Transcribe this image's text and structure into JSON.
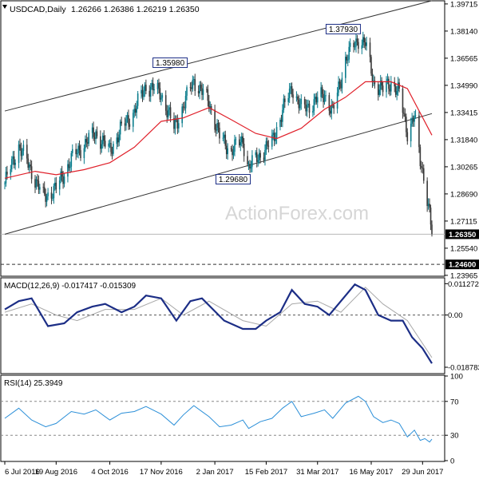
{
  "chart_data": [
    {
      "type": "candlestick",
      "title": "USDCAD,Daily",
      "ohlc_header": "1.26266 1.26386 1.26219 1.26350",
      "watermark": "ActionForex.com",
      "ylim": [
        1.2396,
        1.3985
      ],
      "y_ticks": [
        "1.39715",
        "1.38140",
        "1.36565",
        "1.34990",
        "1.33415",
        "1.31840",
        "1.30265",
        "1.28690",
        "1.27115",
        "1.25540",
        "1.23965"
      ],
      "x_ticks": [
        "6 Jul 2016",
        "19 Aug 2016",
        "4 Oct 2016",
        "17 Nov 2016",
        "2 Jan 2017",
        "15 Feb 2017",
        "31 Mar 2017",
        "16 May 2017",
        "29 Jun 2017"
      ],
      "current_price_label": "1.26350",
      "support_label": "1.24600",
      "annotations": [
        {
          "label": "1.35980",
          "value": 1.3598
        },
        {
          "label": "1.37930",
          "value": 1.3793
        },
        {
          "label": "1.29680",
          "value": 1.2968
        }
      ],
      "channel": {
        "upper": [
          {
            "date": "2016-07-06",
            "value": 1.335
          },
          {
            "date": "2017-07-07",
            "value": 1.399
          }
        ],
        "lower": [
          {
            "date": "2016-07-06",
            "value": 1.2635
          },
          {
            "date": "2017-07-07",
            "value": 1.3335
          }
        ]
      },
      "moving_average_color": "#e0202a",
      "bull_color": "#0a7c8c",
      "bear_color": "#3a3a3a",
      "close_path": [
        {
          "date": "2016-07-06",
          "value": 1.293
        },
        {
          "date": "2016-07-18",
          "value": 1.315
        },
        {
          "date": "2016-07-29",
          "value": 1.3
        },
        {
          "date": "2016-08-08",
          "value": 1.285
        },
        {
          "date": "2016-08-19",
          "value": 1.29
        },
        {
          "date": "2016-09-01",
          "value": 1.307
        },
        {
          "date": "2016-09-12",
          "value": 1.316
        },
        {
          "date": "2016-09-22",
          "value": 1.322
        },
        {
          "date": "2016-10-04",
          "value": 1.312
        },
        {
          "date": "2016-10-14",
          "value": 1.325
        },
        {
          "date": "2016-10-25",
          "value": 1.335
        },
        {
          "date": "2016-11-04",
          "value": 1.35
        },
        {
          "date": "2016-11-17",
          "value": 1.345
        },
        {
          "date": "2016-11-28",
          "value": 1.325
        },
        {
          "date": "2016-12-06",
          "value": 1.338
        },
        {
          "date": "2016-12-15",
          "value": 1.353
        },
        {
          "date": "2016-12-28",
          "value": 1.34
        },
        {
          "date": "2017-01-06",
          "value": 1.32
        },
        {
          "date": "2017-01-16",
          "value": 1.312
        },
        {
          "date": "2017-01-26",
          "value": 1.318
        },
        {
          "date": "2017-01-31",
          "value": 1.302
        },
        {
          "date": "2017-02-10",
          "value": 1.31
        },
        {
          "date": "2017-02-20",
          "value": 1.317
        },
        {
          "date": "2017-03-01",
          "value": 1.335
        },
        {
          "date": "2017-03-09",
          "value": 1.349
        },
        {
          "date": "2017-03-17",
          "value": 1.336
        },
        {
          "date": "2017-03-28",
          "value": 1.34
        },
        {
          "date": "2017-04-06",
          "value": 1.345
        },
        {
          "date": "2017-04-13",
          "value": 1.334
        },
        {
          "date": "2017-04-24",
          "value": 1.365
        },
        {
          "date": "2017-05-05",
          "value": 1.377
        },
        {
          "date": "2017-05-11",
          "value": 1.374
        },
        {
          "date": "2017-05-18",
          "value": 1.352
        },
        {
          "date": "2017-05-26",
          "value": 1.347
        },
        {
          "date": "2017-06-02",
          "value": 1.352
        },
        {
          "date": "2017-06-09",
          "value": 1.345
        },
        {
          "date": "2017-06-16",
          "value": 1.323
        },
        {
          "date": "2017-06-22",
          "value": 1.332
        },
        {
          "date": "2017-06-27",
          "value": 1.306
        },
        {
          "date": "2017-07-01",
          "value": 1.295
        },
        {
          "date": "2017-07-05",
          "value": 1.275
        },
        {
          "date": "2017-07-07",
          "value": 1.2635
        }
      ],
      "moving_average": [
        {
          "date": "2016-07-06",
          "value": 1.296
        },
        {
          "date": "2016-08-01",
          "value": 1.3
        },
        {
          "date": "2016-08-19",
          "value": 1.298
        },
        {
          "date": "2016-09-12",
          "value": 1.301
        },
        {
          "date": "2016-10-04",
          "value": 1.305
        },
        {
          "date": "2016-10-25",
          "value": 1.314
        },
        {
          "date": "2016-11-17",
          "value": 1.329
        },
        {
          "date": "2016-12-06",
          "value": 1.331
        },
        {
          "date": "2016-12-28",
          "value": 1.337
        },
        {
          "date": "2017-01-16",
          "value": 1.33
        },
        {
          "date": "2017-02-06",
          "value": 1.322
        },
        {
          "date": "2017-02-24",
          "value": 1.319
        },
        {
          "date": "2017-03-17",
          "value": 1.325
        },
        {
          "date": "2017-04-06",
          "value": 1.336
        },
        {
          "date": "2017-04-24",
          "value": 1.343
        },
        {
          "date": "2017-05-11",
          "value": 1.352
        },
        {
          "date": "2017-06-02",
          "value": 1.352
        },
        {
          "date": "2017-06-16",
          "value": 1.348
        },
        {
          "date": "2017-07-07",
          "value": 1.321
        }
      ]
    },
    {
      "type": "line",
      "title": "MACD(12,26,9) -0.017417 -0.015309",
      "ylim": [
        -0.0205,
        0.0128
      ],
      "y_ticks": [
        "0.011272",
        "0.00",
        "-0.018783"
      ],
      "series": [
        {
          "name": "MACD",
          "color": "#1c2e86",
          "values": [
            {
              "date": "2016-07-06",
              "value": 0.002
            },
            {
              "date": "2016-07-18",
              "value": 0.005
            },
            {
              "date": "2016-07-29",
              "value": 0.006
            },
            {
              "date": "2016-08-12",
              "value": -0.004
            },
            {
              "date": "2016-08-26",
              "value": -0.003
            },
            {
              "date": "2016-09-06",
              "value": 0.001
            },
            {
              "date": "2016-09-19",
              "value": 0.003
            },
            {
              "date": "2016-09-30",
              "value": 0.004
            },
            {
              "date": "2016-10-14",
              "value": 0.001
            },
            {
              "date": "2016-10-25",
              "value": 0.003
            },
            {
              "date": "2016-11-04",
              "value": 0.007
            },
            {
              "date": "2016-11-17",
              "value": 0.006
            },
            {
              "date": "2016-11-30",
              "value": -0.002
            },
            {
              "date": "2016-12-12",
              "value": 0.005
            },
            {
              "date": "2016-12-22",
              "value": 0.006
            },
            {
              "date": "2017-01-10",
              "value": -0.002
            },
            {
              "date": "2017-01-26",
              "value": -0.005
            },
            {
              "date": "2017-02-06",
              "value": -0.005
            },
            {
              "date": "2017-02-15",
              "value": -0.002
            },
            {
              "date": "2017-02-27",
              "value": 0.001
            },
            {
              "date": "2017-03-09",
              "value": 0.009
            },
            {
              "date": "2017-03-20",
              "value": 0.004
            },
            {
              "date": "2017-03-31",
              "value": 0.003
            },
            {
              "date": "2017-04-10",
              "value": 0.0
            },
            {
              "date": "2017-04-20",
              "value": 0.005
            },
            {
              "date": "2017-05-02",
              "value": 0.011
            },
            {
              "date": "2017-05-11",
              "value": 0.009
            },
            {
              "date": "2017-05-22",
              "value": 0.0
            },
            {
              "date": "2017-06-02",
              "value": -0.002
            },
            {
              "date": "2017-06-12",
              "value": -0.002
            },
            {
              "date": "2017-06-20",
              "value": -0.008
            },
            {
              "date": "2017-06-29",
              "value": -0.012
            },
            {
              "date": "2017-07-07",
              "value": -0.0174
            }
          ]
        },
        {
          "name": "Signal",
          "color": "#a8a8a8",
          "values": [
            {
              "date": "2016-07-06",
              "value": 0.001
            },
            {
              "date": "2016-07-29",
              "value": 0.004
            },
            {
              "date": "2016-08-19",
              "value": 0.0
            },
            {
              "date": "2016-09-06",
              "value": -0.002
            },
            {
              "date": "2016-09-30",
              "value": 0.002
            },
            {
              "date": "2016-10-25",
              "value": 0.002
            },
            {
              "date": "2016-11-17",
              "value": 0.006
            },
            {
              "date": "2016-12-06",
              "value": 0.0
            },
            {
              "date": "2016-12-28",
              "value": 0.005
            },
            {
              "date": "2017-01-26",
              "value": -0.002
            },
            {
              "date": "2017-02-15",
              "value": -0.004
            },
            {
              "date": "2017-03-09",
              "value": 0.004
            },
            {
              "date": "2017-03-31",
              "value": 0.005
            },
            {
              "date": "2017-04-20",
              "value": 0.001
            },
            {
              "date": "2017-05-11",
              "value": 0.01
            },
            {
              "date": "2017-05-26",
              "value": 0.004
            },
            {
              "date": "2017-06-16",
              "value": -0.002
            },
            {
              "date": "2017-07-07",
              "value": -0.0153
            }
          ]
        }
      ]
    },
    {
      "type": "line",
      "title": "RSI(14) 25.3949",
      "ylim": [
        0,
        100
      ],
      "y_ticks": [
        "100",
        "70",
        "30",
        "0"
      ],
      "levels": [
        70,
        30
      ],
      "series": [
        {
          "name": "RSI",
          "color": "#2b8fd8",
          "values": [
            {
              "date": "2016-07-06",
              "value": 50
            },
            {
              "date": "2016-07-18",
              "value": 62
            },
            {
              "date": "2016-07-29",
              "value": 48
            },
            {
              "date": "2016-08-10",
              "value": 40
            },
            {
              "date": "2016-08-19",
              "value": 44
            },
            {
              "date": "2016-09-01",
              "value": 58
            },
            {
              "date": "2016-09-12",
              "value": 55
            },
            {
              "date": "2016-09-22",
              "value": 60
            },
            {
              "date": "2016-10-04",
              "value": 48
            },
            {
              "date": "2016-10-14",
              "value": 56
            },
            {
              "date": "2016-10-25",
              "value": 58
            },
            {
              "date": "2016-11-04",
              "value": 64
            },
            {
              "date": "2016-11-17",
              "value": 55
            },
            {
              "date": "2016-11-28",
              "value": 42
            },
            {
              "date": "2016-12-06",
              "value": 54
            },
            {
              "date": "2016-12-15",
              "value": 65
            },
            {
              "date": "2016-12-28",
              "value": 52
            },
            {
              "date": "2017-01-06",
              "value": 40
            },
            {
              "date": "2017-01-16",
              "value": 42
            },
            {
              "date": "2017-01-26",
              "value": 48
            },
            {
              "date": "2017-01-31",
              "value": 38
            },
            {
              "date": "2017-02-10",
              "value": 46
            },
            {
              "date": "2017-02-20",
              "value": 50
            },
            {
              "date": "2017-03-01",
              "value": 62
            },
            {
              "date": "2017-03-09",
              "value": 70
            },
            {
              "date": "2017-03-17",
              "value": 52
            },
            {
              "date": "2017-03-28",
              "value": 56
            },
            {
              "date": "2017-04-06",
              "value": 60
            },
            {
              "date": "2017-04-13",
              "value": 50
            },
            {
              "date": "2017-04-24",
              "value": 68
            },
            {
              "date": "2017-05-05",
              "value": 76
            },
            {
              "date": "2017-05-11",
              "value": 70
            },
            {
              "date": "2017-05-18",
              "value": 52
            },
            {
              "date": "2017-05-26",
              "value": 45
            },
            {
              "date": "2017-06-02",
              "value": 48
            },
            {
              "date": "2017-06-09",
              "value": 44
            },
            {
              "date": "2017-06-16",
              "value": 28
            },
            {
              "date": "2017-06-22",
              "value": 36
            },
            {
              "date": "2017-06-27",
              "value": 24
            },
            {
              "date": "2017-07-01",
              "value": 26
            },
            {
              "date": "2017-07-05",
              "value": 22
            },
            {
              "date": "2017-07-07",
              "value": 25.4
            }
          ]
        }
      ]
    }
  ]
}
